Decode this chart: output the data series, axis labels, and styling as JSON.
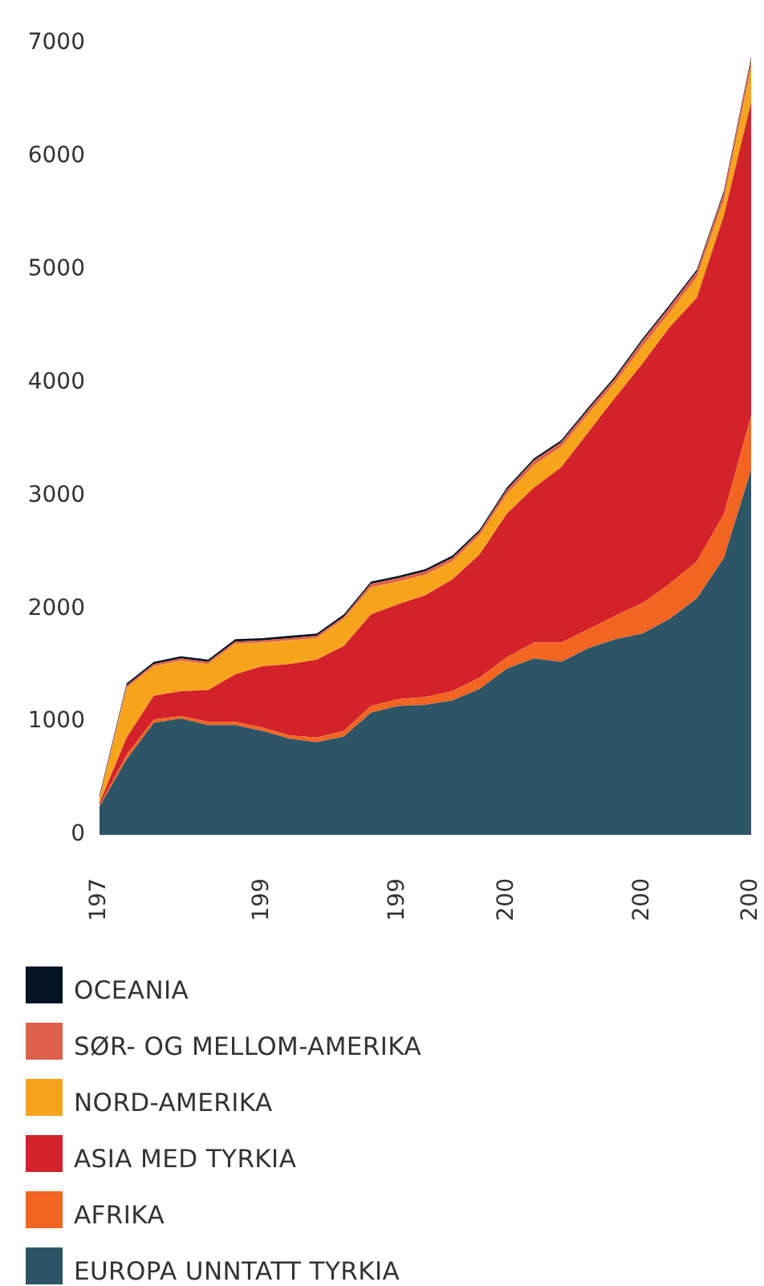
{
  "chart_data": {
    "type": "area",
    "stacked": true,
    "grid": false,
    "legend": "bottom",
    "categories": [
      "197",
      null,
      null,
      null,
      null,
      null,
      "199",
      null,
      null,
      null,
      null,
      "199",
      null,
      null,
      null,
      "200",
      null,
      null,
      null,
      null,
      "200",
      null,
      null,
      null,
      "200"
    ],
    "ylim": [
      0,
      7000
    ],
    "yticks": [
      0,
      1000,
      2000,
      3000,
      4000,
      5000,
      6000,
      7000
    ],
    "series": [
      {
        "name": "EUROPA UNNTATT TYRKIA",
        "color": "#2d5565",
        "values": [
          250,
          670,
          990,
          1030,
          970,
          970,
          920,
          850,
          820,
          870,
          1080,
          1140,
          1150,
          1190,
          1290,
          1470,
          1560,
          1530,
          1650,
          1730,
          1780,
          1910,
          2090,
          2450,
          3230
        ]
      },
      {
        "name": "AFRIKA",
        "color": "#f26522",
        "values": [
          10,
          40,
          30,
          20,
          30,
          30,
          30,
          30,
          40,
          50,
          60,
          60,
          70,
          80,
          100,
          100,
          140,
          170,
          170,
          210,
          270,
          310,
          330,
          390,
          480
        ]
      },
      {
        "name": "ASIA MED TYRKIA",
        "color": "#d2232a",
        "values": [
          20,
          150,
          210,
          220,
          280,
          420,
          540,
          630,
          690,
          750,
          810,
          840,
          900,
          990,
          1090,
          1270,
          1370,
          1550,
          1740,
          1930,
          2120,
          2270,
          2330,
          2640,
          2770
        ]
      },
      {
        "name": "NORD-AMERIKA",
        "color": "#f7a41d",
        "values": [
          40,
          440,
          260,
          270,
          230,
          270,
          210,
          210,
          190,
          240,
          240,
          200,
          180,
          160,
          170,
          170,
          200,
          180,
          160,
          130,
          150,
          130,
          180,
          140,
          310
        ]
      },
      {
        "name": "SØR- OG MELLOM-AMERIKA",
        "color": "#dd614a",
        "values": [
          10,
          20,
          20,
          20,
          20,
          20,
          20,
          20,
          20,
          20,
          30,
          30,
          30,
          30,
          30,
          40,
          40,
          40,
          40,
          40,
          50,
          50,
          50,
          60,
          70
        ]
      },
      {
        "name": "OCEANIA",
        "color": "#041424",
        "values": [
          20,
          20,
          20,
          20,
          20,
          20,
          20,
          20,
          20,
          20,
          20,
          20,
          20,
          20,
          20,
          20,
          20,
          20,
          20,
          20,
          20,
          20,
          20,
          20,
          20
        ]
      }
    ]
  }
}
